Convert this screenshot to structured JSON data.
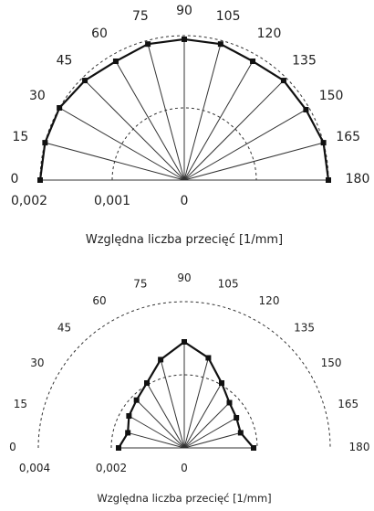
{
  "chart_data": [
    {
      "type": "polar-line",
      "angle_labels": [
        "0",
        "15",
        "30",
        "45",
        "60",
        "75",
        "90",
        "105",
        "120",
        "135",
        "150",
        "165",
        "180"
      ],
      "radius_tick_labels": [
        "0,002",
        "0,001",
        "0"
      ],
      "xlabel": "Względna liczba przecięć  [1/mm]",
      "rlim": [
        0,
        0.002
      ],
      "grid": true,
      "series": [
        {
          "angles": [
            0,
            15,
            30,
            45,
            60,
            75,
            90,
            105,
            120,
            135,
            150,
            165,
            180
          ],
          "values": [
            0.002,
            0.002,
            0.002,
            0.00195,
            0.0019,
            0.00195,
            0.00195,
            0.00195,
            0.0019,
            0.00195,
            0.00195,
            0.002,
            0.002
          ]
        }
      ]
    },
    {
      "type": "polar-line",
      "angle_labels": [
        "0",
        "15",
        "30",
        "45",
        "60",
        "75",
        "90",
        "105",
        "120",
        "135",
        "150",
        "165",
        "180"
      ],
      "radius_tick_labels": [
        "0,004",
        "0,002",
        "0"
      ],
      "xlabel": "Względna liczba przecięć  [1/mm]",
      "rlim": [
        0,
        0.004
      ],
      "grid": true,
      "series": [
        {
          "angles": [
            0,
            15,
            30,
            45,
            60,
            75,
            90,
            105,
            120,
            135,
            150,
            165,
            180
          ],
          "values": [
            0.0018,
            0.0016,
            0.00175,
            0.00185,
            0.00205,
            0.0025,
            0.0029,
            0.00255,
            0.00205,
            0.00175,
            0.00165,
            0.0016,
            0.0019
          ]
        }
      ]
    }
  ]
}
